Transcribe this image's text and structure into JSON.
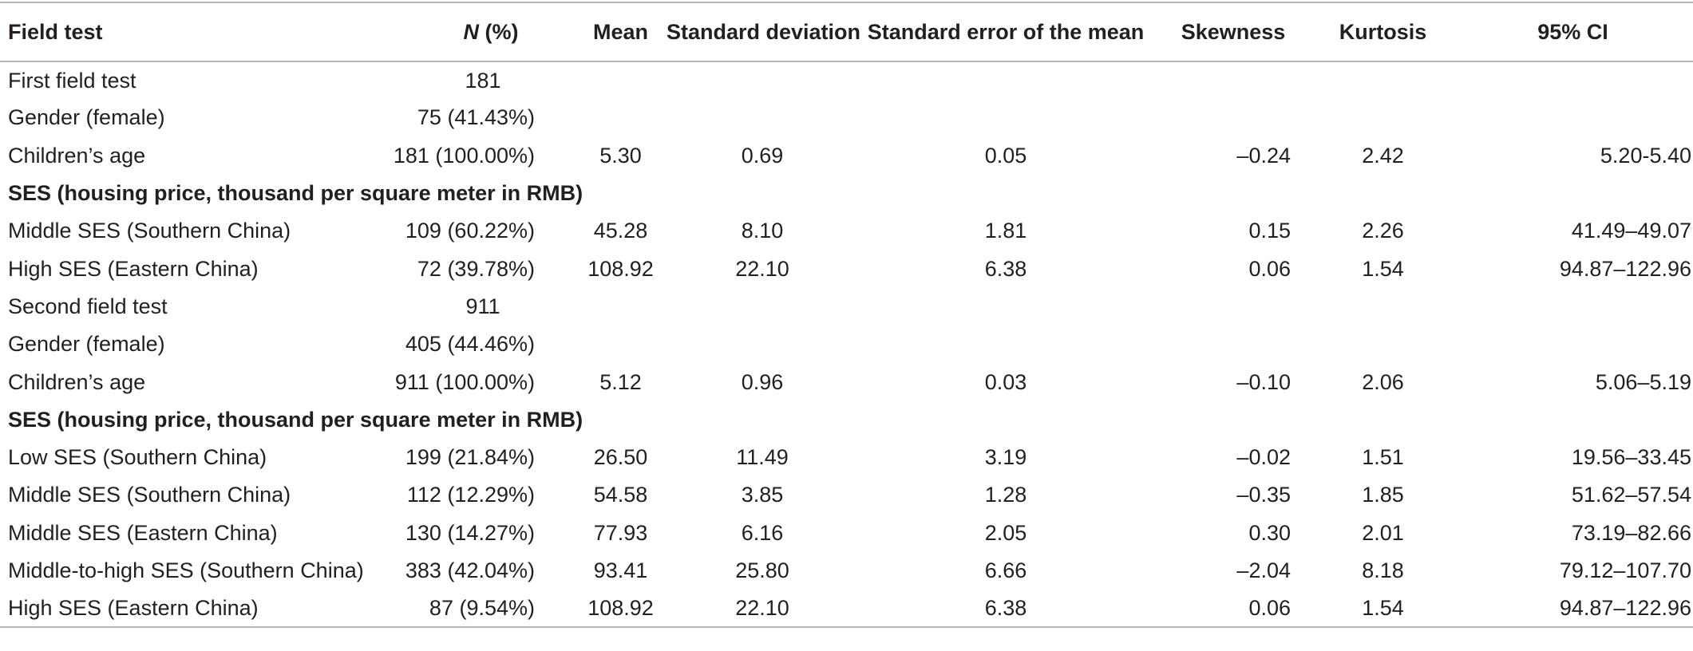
{
  "headers": [
    "Field test",
    "N",
    " (%)",
    "Mean",
    "Standard deviation",
    "Standard error of the mean",
    "Skewness",
    "Kurtosis",
    "95% CI"
  ],
  "rows": [
    {
      "label": "First field test",
      "n": "181",
      "mean": "",
      "sd": "",
      "sem": "",
      "skew": "",
      "kurt": "",
      "ci": ""
    },
    {
      "label": "Gender (female)",
      "n": "75 (41.43%)",
      "mean": "",
      "sd": "",
      "sem": "",
      "skew": "",
      "kurt": "",
      "ci": ""
    },
    {
      "label": "Children’s age",
      "n": "181 (100.00%)",
      "mean": "5.30",
      "sd": "0.69",
      "sem": "0.05",
      "skew": "–0.24",
      "kurt": "2.42",
      "ci": "5.20-5.40"
    },
    {
      "label": "SES (housing price, thousand per square meter in RMB)",
      "section": true
    },
    {
      "label": "Middle SES (Southern China)",
      "n": "109 (60.22%)",
      "mean": "45.28",
      "sd": "8.10",
      "sem": "1.81",
      "skew": "0.15",
      "kurt": "2.26",
      "ci": "41.49–49.07"
    },
    {
      "label": "High SES (Eastern China)",
      "n": "72 (39.78%)",
      "mean": "108.92",
      "sd": "22.10",
      "sem": "6.38",
      "skew": "0.06",
      "kurt": "1.54",
      "ci": "94.87–122.96"
    },
    {
      "label": "Second field test",
      "n": "911",
      "mean": "",
      "sd": "",
      "sem": "",
      "skew": "",
      "kurt": "",
      "ci": ""
    },
    {
      "label": "Gender (female)",
      "n": "405 (44.46%)",
      "mean": "",
      "sd": "",
      "sem": "",
      "skew": "",
      "kurt": "",
      "ci": ""
    },
    {
      "label": "Children’s age",
      "n": "911 (100.00%)",
      "mean": "5.12",
      "sd": "0.96",
      "sem": "0.03",
      "skew": "–0.10",
      "kurt": "2.06",
      "ci": "5.06–5.19"
    },
    {
      "label": "SES (housing price, thousand per square meter in RMB)",
      "section": true
    },
    {
      "label": "Low SES (Southern China)",
      "n": "199 (21.84%)",
      "mean": "26.50",
      "sd": "11.49",
      "sem": "3.19",
      "skew": "–0.02",
      "kurt": "1.51",
      "ci": "19.56–33.45"
    },
    {
      "label": "Middle SES (Southern China)",
      "n": "112 (12.29%)",
      "mean": "54.58",
      "sd": "3.85",
      "sem": "1.28",
      "skew": "–0.35",
      "kurt": "1.85",
      "ci": "51.62–57.54"
    },
    {
      "label": "Middle SES (Eastern China)",
      "n": "130 (14.27%)",
      "mean": "77.93",
      "sd": "6.16",
      "sem": "2.05",
      "skew": "0.30",
      "kurt": "2.01",
      "ci": "73.19–82.66"
    },
    {
      "label": "Middle-to-high SES (Southern China)",
      "n": "383 (42.04%)",
      "mean": "93.41",
      "sd": "25.80",
      "sem": "6.66",
      "skew": "–2.04",
      "kurt": "8.18",
      "ci": "79.12–107.70"
    },
    {
      "label": "High SES (Eastern China)",
      "n": "87 (9.54%)",
      "mean": "108.92",
      "sd": "22.10",
      "sem": "6.38",
      "skew": "0.06",
      "kurt": "1.54",
      "ci": "94.87–122.96"
    }
  ]
}
